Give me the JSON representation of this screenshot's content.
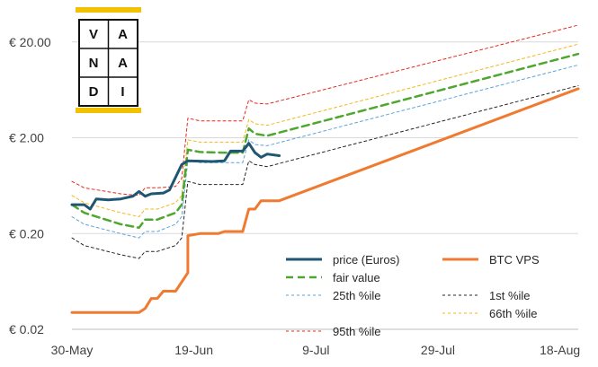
{
  "chart_data": {
    "type": "line",
    "title": "",
    "xlabel": "",
    "ylabel": "",
    "y_scale": "log",
    "ylim": [
      0.02,
      30
    ],
    "x_start": "30-May",
    "x_end": "21-Aug",
    "x_tick_labels": [
      "30-May",
      "19-Jun",
      "9-Jul",
      "29-Jul",
      "18-Aug"
    ],
    "y_tick_labels": [
      "€ 0.02",
      "€ 0.20",
      "€ 2.00",
      "€ 20.00"
    ],
    "y_tick_values": [
      0.02,
      0.2,
      2,
      20
    ],
    "grid": "horizontal",
    "legend_position": "bottom-right",
    "logo_letters": [
      "V",
      "A",
      "N",
      "A",
      "D",
      "I"
    ],
    "logo_colors": {
      "bar": "#f2c200",
      "border": "#111111"
    },
    "series": [
      {
        "name": "price (Euros)",
        "color": "#1f5673",
        "style": "solid",
        "width": 3,
        "points": [
          [
            "30-May",
            0.4
          ],
          [
            "1-Jun",
            0.4
          ],
          [
            "2-Jun",
            0.36
          ],
          [
            "3-Jun",
            0.46
          ],
          [
            "5-Jun",
            0.45
          ],
          [
            "7-Jun",
            0.46
          ],
          [
            "9-Jun",
            0.49
          ],
          [
            "10-Jun",
            0.55
          ],
          [
            "11-Jun",
            0.49
          ],
          [
            "12-Jun",
            0.52
          ],
          [
            "14-Jun",
            0.53
          ],
          [
            "15-Jun",
            0.57
          ],
          [
            "17-Jun",
            1.05
          ],
          [
            "18-Jun",
            1.15
          ],
          [
            "22-Jun",
            1.13
          ],
          [
            "24-Jun",
            1.15
          ],
          [
            "25-Jun",
            1.45
          ],
          [
            "27-Jun",
            1.45
          ],
          [
            "28-Jun",
            1.75
          ],
          [
            "29-Jun",
            1.4
          ],
          [
            "30-Jun",
            1.25
          ],
          [
            "1-Jul",
            1.35
          ],
          [
            "3-Jul",
            1.3
          ]
        ]
      },
      {
        "name": "BTC VPS",
        "color": "#f07a30",
        "style": "solid",
        "width": 3,
        "points": [
          [
            "30-May",
            0.03
          ],
          [
            "5-Jun",
            0.03
          ],
          [
            "10-Jun",
            0.03
          ],
          [
            "11-Jun",
            0.033
          ],
          [
            "12-Jun",
            0.042
          ],
          [
            "13-Jun",
            0.042
          ],
          [
            "14-Jun",
            0.05
          ],
          [
            "16-Jun",
            0.05
          ],
          [
            "18-Jun",
            0.078
          ],
          [
            "18-Jun",
            0.19
          ],
          [
            "20-Jun",
            0.2
          ],
          [
            "23-Jun",
            0.2
          ],
          [
            "24-Jun",
            0.21
          ],
          [
            "27-Jun",
            0.21
          ],
          [
            "28-Jun",
            0.36
          ],
          [
            "29-Jun",
            0.36
          ],
          [
            "30-Jun",
            0.44
          ],
          [
            "3-Jul",
            0.44
          ],
          [
            "21-Aug",
            6.5
          ]
        ]
      },
      {
        "name": "fair value",
        "color": "#4ea72e",
        "style": "dashed",
        "width": 2.5,
        "points": [
          [
            "30-May",
            0.4
          ],
          [
            "1-Jun",
            0.33
          ],
          [
            "7-Jun",
            0.25
          ],
          [
            "10-Jun",
            0.23
          ],
          [
            "11-Jun",
            0.28
          ],
          [
            "13-Jun",
            0.28
          ],
          [
            "16-Jun",
            0.33
          ],
          [
            "17-Jun",
            0.4
          ],
          [
            "18-Jun",
            1.5
          ],
          [
            "20-Jun",
            1.42
          ],
          [
            "24-Jun",
            1.4
          ],
          [
            "27-Jun",
            1.4
          ],
          [
            "28-Jun",
            2.5
          ],
          [
            "29-Jun",
            2.2
          ],
          [
            "1-Jul",
            2.1
          ],
          [
            "21-Aug",
            15
          ]
        ]
      },
      {
        "name": "1st %ile",
        "color": "#262626",
        "style": "dashed",
        "width": 1,
        "points": [
          [
            "30-May",
            0.18
          ],
          [
            "1-Jun",
            0.15
          ],
          [
            "7-Jun",
            0.12
          ],
          [
            "10-Jun",
            0.11
          ],
          [
            "11-Jun",
            0.13
          ],
          [
            "13-Jun",
            0.13
          ],
          [
            "16-Jun",
            0.15
          ],
          [
            "17-Jun",
            0.18
          ],
          [
            "18-Jun",
            0.7
          ],
          [
            "20-Jun",
            0.65
          ],
          [
            "24-Jun",
            0.65
          ],
          [
            "27-Jun",
            0.65
          ],
          [
            "28-Jun",
            1.15
          ],
          [
            "29-Jun",
            1.05
          ],
          [
            "1-Jul",
            1.0
          ],
          [
            "21-Aug",
            7
          ]
        ]
      },
      {
        "name": "25th %ile",
        "color": "#5ba3d9",
        "style": "dashed",
        "width": 1,
        "points": [
          [
            "30-May",
            0.3
          ],
          [
            "1-Jun",
            0.25
          ],
          [
            "7-Jun",
            0.2
          ],
          [
            "10-Jun",
            0.18
          ],
          [
            "11-Jun",
            0.21
          ],
          [
            "13-Jun",
            0.21
          ],
          [
            "16-Jun",
            0.25
          ],
          [
            "17-Jun",
            0.3
          ],
          [
            "18-Jun",
            1.15
          ],
          [
            "20-Jun",
            1.1
          ],
          [
            "24-Jun",
            1.1
          ],
          [
            "27-Jun",
            1.1
          ],
          [
            "28-Jun",
            1.9
          ],
          [
            "29-Jun",
            1.7
          ],
          [
            "1-Jul",
            1.65
          ],
          [
            "21-Aug",
            11.5
          ]
        ]
      },
      {
        "name": "66th %ile",
        "color": "#f2b81a",
        "style": "dashed",
        "width": 1,
        "points": [
          [
            "30-May",
            0.5
          ],
          [
            "1-Jun",
            0.42
          ],
          [
            "7-Jun",
            0.33
          ],
          [
            "10-Jun",
            0.3
          ],
          [
            "11-Jun",
            0.36
          ],
          [
            "13-Jun",
            0.36
          ],
          [
            "16-Jun",
            0.42
          ],
          [
            "17-Jun",
            0.5
          ],
          [
            "18-Jun",
            1.9
          ],
          [
            "20-Jun",
            1.8
          ],
          [
            "24-Jun",
            1.8
          ],
          [
            "27-Jun",
            1.8
          ],
          [
            "28-Jun",
            3.1
          ],
          [
            "29-Jun",
            2.8
          ],
          [
            "1-Jul",
            2.7
          ],
          [
            "21-Aug",
            19
          ]
        ]
      },
      {
        "name": "95th %ile",
        "color": "#e8271b",
        "style": "dashed",
        "width": 1,
        "points": [
          [
            "30-May",
            0.7
          ],
          [
            "1-Jun",
            0.6
          ],
          [
            "7-Jun",
            0.52
          ],
          [
            "10-Jun",
            0.5
          ],
          [
            "11-Jun",
            0.6
          ],
          [
            "13-Jun",
            0.6
          ],
          [
            "16-Jun",
            0.62
          ],
          [
            "17-Jun",
            0.75
          ],
          [
            "18-Jun",
            3.2
          ],
          [
            "20-Jun",
            3.0
          ],
          [
            "24-Jun",
            3.0
          ],
          [
            "27-Jun",
            3.0
          ],
          [
            "28-Jun",
            5.0
          ],
          [
            "29-Jun",
            4.6
          ],
          [
            "1-Jul",
            4.5
          ],
          [
            "21-Aug",
            30
          ]
        ]
      }
    ],
    "legend_order": [
      [
        "price (Euros)",
        "BTC VPS"
      ],
      [
        "fair value",
        ""
      ],
      [
        "25th %ile",
        "1st %ile"
      ],
      [
        "",
        "66th %ile"
      ],
      [
        "95th %ile",
        ""
      ]
    ]
  }
}
